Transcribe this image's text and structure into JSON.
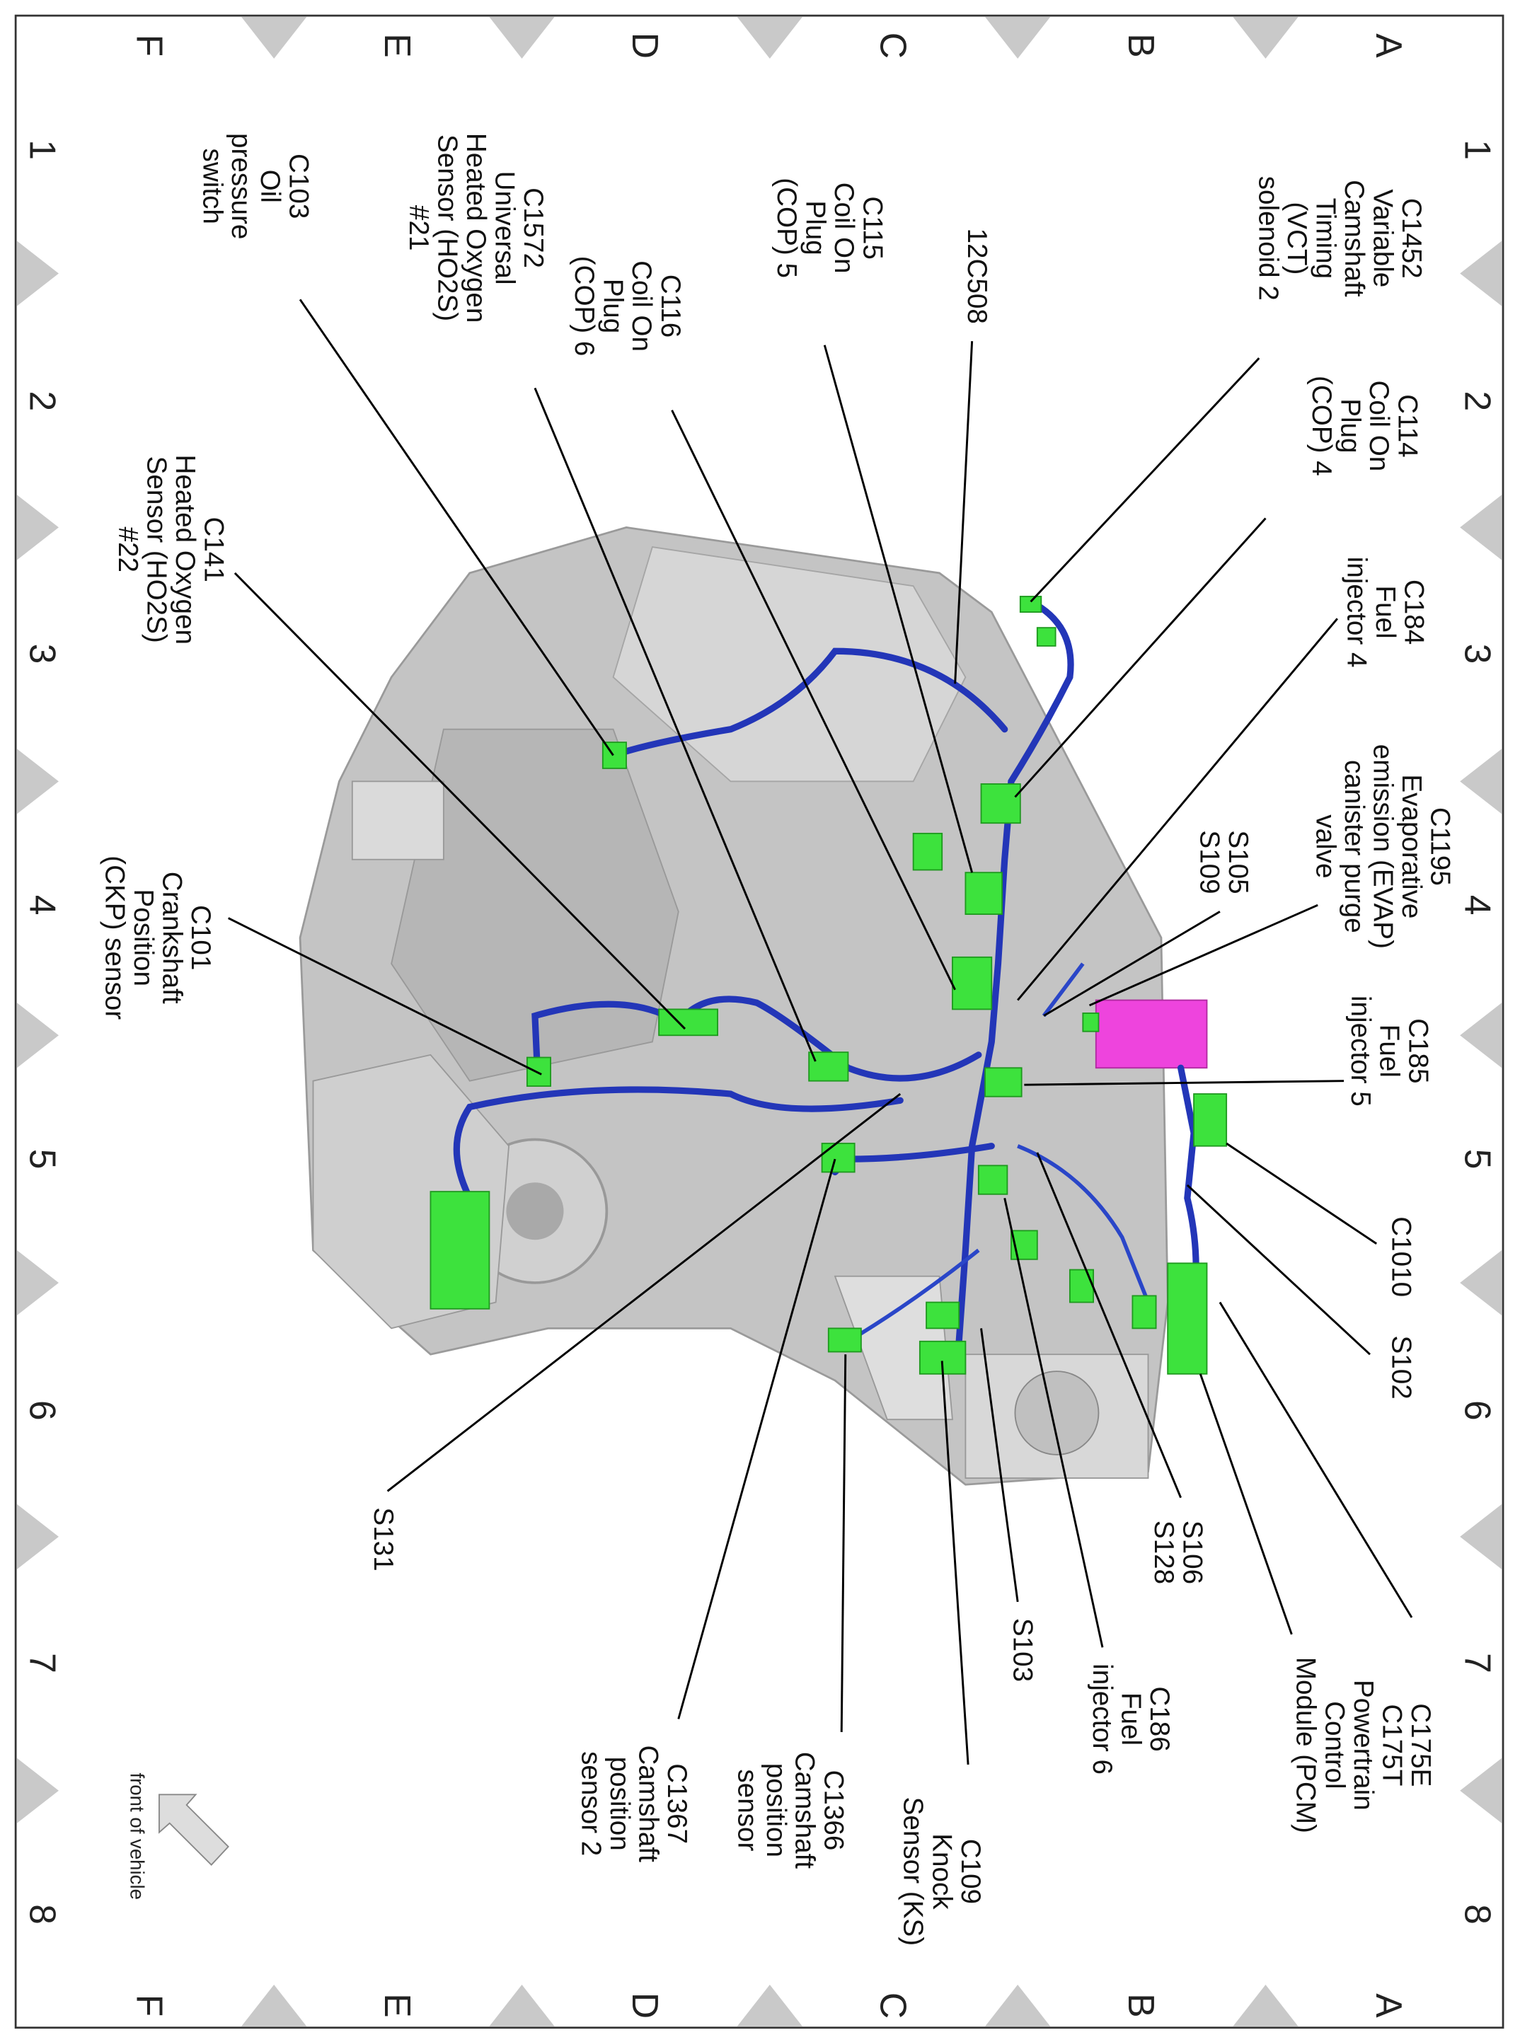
{
  "diagram": {
    "colors": {
      "harness": "#2336b8",
      "connector": "#3de23d",
      "pcm": "#ee44dd",
      "engine": "#bdbdbd"
    },
    "grid": {
      "columns": [
        "1",
        "2",
        "3",
        "4",
        "5",
        "6",
        "7",
        "8"
      ],
      "rows": [
        "A",
        "B",
        "C",
        "D",
        "E",
        "F"
      ]
    },
    "labels": [
      {
        "id": "C1452",
        "lines": [
          "C1452",
          "Variable",
          "Camshaft",
          "Timing",
          "(VCT)",
          "solenoid 2"
        ]
      },
      {
        "id": "C114",
        "lines": [
          "C114",
          "Coil On",
          "Plug",
          "(COP) 4"
        ]
      },
      {
        "id": "C184",
        "lines": [
          "C184",
          "Fuel",
          "injector 4"
        ]
      },
      {
        "id": "C1195",
        "lines": [
          "C1195",
          "Evaporative",
          "emission (EVAP)",
          "canister purge",
          "valve"
        ]
      },
      {
        "id": "S105",
        "lines": [
          "S105",
          "S109"
        ]
      },
      {
        "id": "C185",
        "lines": [
          "C185",
          "Fuel",
          "injector 5"
        ]
      },
      {
        "id": "C1010",
        "lines": [
          "C1010"
        ]
      },
      {
        "id": "S102",
        "lines": [
          "S102"
        ]
      },
      {
        "id": "C175E",
        "lines": [
          "C175E",
          "C175T",
          "Powertrain",
          "Control",
          "Module (PCM)"
        ]
      },
      {
        "id": "S106",
        "lines": [
          "S106",
          "S128"
        ]
      },
      {
        "id": "C186",
        "lines": [
          "C186",
          "Fuel",
          "injector 6"
        ]
      },
      {
        "id": "S103",
        "lines": [
          "S103"
        ]
      },
      {
        "id": "C109",
        "lines": [
          "C109",
          "Knock",
          "Sensor (KS)"
        ]
      },
      {
        "id": "C1366",
        "lines": [
          "C1366",
          "Camshaft",
          "position",
          "sensor"
        ]
      },
      {
        "id": "C1367",
        "lines": [
          "C1367",
          "Camshaft",
          "position",
          "sensor 2"
        ]
      },
      {
        "id": "S131",
        "lines": [
          "S131"
        ]
      },
      {
        "id": "12C508",
        "lines": [
          "12C508"
        ]
      },
      {
        "id": "C115",
        "lines": [
          "C115",
          "Coil On",
          "Plug",
          "(COP) 5"
        ]
      },
      {
        "id": "C116",
        "lines": [
          "C116",
          "Coil On",
          "Plug",
          "(COP) 6"
        ]
      },
      {
        "id": "C1572",
        "lines": [
          "C1572",
          "Universal",
          "Heated Oxygen",
          "Sensor (HO2S)",
          "#21"
        ]
      },
      {
        "id": "C103",
        "lines": [
          "C103",
          "Oil",
          "pressure",
          "switch"
        ]
      },
      {
        "id": "C141",
        "lines": [
          "C141",
          "Heated Oxygen",
          "Sensor (HO2S)",
          "#22"
        ]
      },
      {
        "id": "C101",
        "lines": [
          "C101",
          "Crankshaft",
          "Position",
          "(CKP) sensor"
        ]
      }
    ],
    "orientation": {
      "text": "front of vehicle",
      "icon": "arrow-icon"
    }
  }
}
